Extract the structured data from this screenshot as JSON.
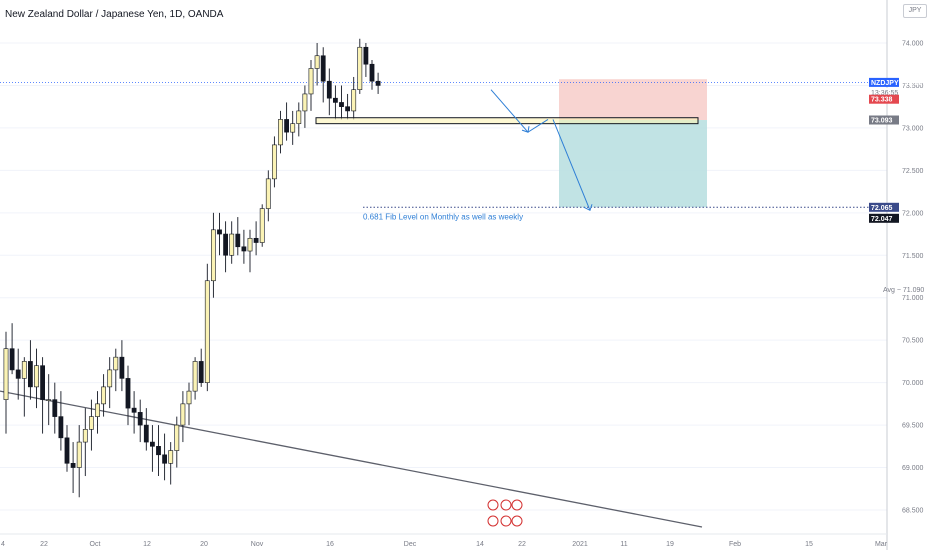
{
  "window": {
    "title": "New Zealand Dollar / Japanese Yen, 1D, OANDA",
    "currency_button": "JPY"
  },
  "colors": {
    "bull": "#fbf3b5",
    "bear": "#131722",
    "wick": "#131722",
    "target_zone": "#b6dedf",
    "stop_zone": "#f6c9c6",
    "stop_line": "#f4a8a0",
    "annotation": "#2f7fd6",
    "trendline": "#5d606b",
    "tag_price": "#2962ff",
    "tag_stop": "#e4484f",
    "tag_entry": "#787b86",
    "tag_target": "#3a4a8a"
  },
  "chart_data": {
    "type": "candlestick",
    "title": "New Zealand Dollar / Japanese Yen, 1D, OANDA",
    "ylim": [
      68.3,
      74.55
    ],
    "price_axis_ticks": [
      "74.000",
      "73.500",
      "73.000",
      "72.500",
      "72.000",
      "71.500",
      "71.000",
      "70.500",
      "70.000",
      "69.500",
      "69.000",
      "68.500"
    ],
    "time_axis_ticks": [
      "4",
      "22",
      "Oct",
      "12",
      "20",
      "Nov",
      "16",
      "Dec",
      "14",
      "22",
      "2021",
      "11",
      "19",
      "Feb",
      "15",
      "Mar"
    ],
    "candles": [
      [
        69.8,
        70.6,
        69.4,
        70.4
      ],
      [
        70.4,
        70.7,
        70.1,
        70.15
      ],
      [
        70.15,
        70.4,
        69.8,
        70.05
      ],
      [
        70.05,
        70.3,
        69.6,
        70.25
      ],
      [
        70.25,
        70.5,
        69.8,
        69.95
      ],
      [
        69.95,
        70.4,
        69.7,
        70.2
      ],
      [
        70.2,
        70.3,
        69.4,
        69.8
      ],
      [
        69.8,
        70.1,
        69.5,
        69.8
      ],
      [
        69.8,
        70.0,
        69.4,
        69.6
      ],
      [
        69.6,
        69.9,
        69.2,
        69.35
      ],
      [
        69.35,
        69.5,
        68.95,
        69.05
      ],
      [
        69.05,
        69.3,
        68.7,
        69.0
      ],
      [
        69.0,
        69.5,
        68.65,
        69.3
      ],
      [
        69.3,
        69.7,
        68.9,
        69.45
      ],
      [
        69.45,
        69.8,
        69.2,
        69.6
      ],
      [
        69.6,
        69.9,
        69.4,
        69.75
      ],
      [
        69.75,
        70.1,
        69.6,
        69.95
      ],
      [
        69.95,
        70.3,
        69.7,
        70.15
      ],
      [
        70.15,
        70.4,
        69.9,
        70.3
      ],
      [
        70.3,
        70.5,
        69.9,
        70.05
      ],
      [
        70.05,
        70.2,
        69.5,
        69.7
      ],
      [
        69.7,
        69.9,
        69.4,
        69.65
      ],
      [
        69.65,
        69.8,
        69.3,
        69.5
      ],
      [
        69.5,
        69.7,
        69.2,
        69.3
      ],
      [
        69.3,
        69.5,
        68.95,
        69.25
      ],
      [
        69.25,
        69.5,
        68.9,
        69.15
      ],
      [
        69.15,
        69.4,
        68.85,
        69.05
      ],
      [
        69.05,
        69.3,
        68.8,
        69.2
      ],
      [
        69.2,
        69.6,
        69.0,
        69.5
      ],
      [
        69.5,
        69.9,
        69.3,
        69.75
      ],
      [
        69.75,
        70.0,
        69.5,
        69.9
      ],
      [
        69.9,
        70.3,
        69.8,
        70.25
      ],
      [
        70.25,
        70.4,
        69.95,
        70.0
      ],
      [
        70.0,
        71.4,
        69.9,
        71.2
      ],
      [
        71.2,
        72.0,
        71.0,
        71.8
      ],
      [
        71.8,
        72.0,
        71.5,
        71.75
      ],
      [
        71.75,
        71.9,
        71.3,
        71.5
      ],
      [
        71.5,
        71.9,
        71.4,
        71.75
      ],
      [
        71.75,
        71.95,
        71.5,
        71.6
      ],
      [
        71.6,
        71.8,
        71.4,
        71.55
      ],
      [
        71.55,
        71.8,
        71.3,
        71.7
      ],
      [
        71.7,
        71.9,
        71.5,
        71.65
      ],
      [
        71.65,
        72.1,
        71.6,
        72.05
      ],
      [
        72.05,
        72.5,
        71.9,
        72.4
      ],
      [
        72.4,
        72.9,
        72.3,
        72.8
      ],
      [
        72.8,
        73.2,
        72.7,
        73.1
      ],
      [
        73.1,
        73.3,
        72.85,
        72.95
      ],
      [
        72.95,
        73.2,
        72.8,
        73.05
      ],
      [
        73.05,
        73.3,
        72.9,
        73.2
      ],
      [
        73.2,
        73.5,
        73.0,
        73.4
      ],
      [
        73.4,
        73.8,
        73.2,
        73.7
      ],
      [
        73.7,
        74.0,
        73.5,
        73.85
      ],
      [
        73.85,
        73.95,
        73.3,
        73.55
      ],
      [
        73.55,
        73.7,
        73.15,
        73.35
      ],
      [
        73.35,
        73.5,
        73.1,
        73.3
      ],
      [
        73.3,
        73.5,
        73.1,
        73.25
      ],
      [
        73.25,
        73.4,
        73.1,
        73.2
      ],
      [
        73.2,
        73.6,
        73.1,
        73.45
      ],
      [
        73.45,
        74.05,
        73.4,
        73.95
      ],
      [
        73.95,
        74.0,
        73.6,
        73.75
      ],
      [
        73.75,
        73.8,
        73.45,
        73.55
      ],
      [
        73.55,
        73.65,
        73.4,
        73.5
      ]
    ],
    "current_price": {
      "label": "NZDJPY",
      "value": "73.536",
      "countdown": "13:36:55"
    },
    "position": {
      "stop": "73.338",
      "entry": "73.093",
      "target": "72.065",
      "ratio_label": "72.047"
    },
    "fib_line": {
      "value": 72.065,
      "label": "0.681 Fib Level on Monthly as well as weekly"
    },
    "resistance_zone": [
      73.05,
      73.12
    ],
    "avg_label": "Avg − 71.090",
    "avg_value": 71.09,
    "trendline": {
      "from": [
        0,
        69.9
      ],
      "to": [
        702,
        68.3
      ]
    },
    "projection_path_1": [
      [
        491,
        73.45
      ],
      [
        528,
        72.95
      ],
      [
        548,
        73.1
      ]
    ],
    "projection_path_2": [
      [
        553,
        73.1
      ],
      [
        590,
        72.03
      ]
    ]
  }
}
